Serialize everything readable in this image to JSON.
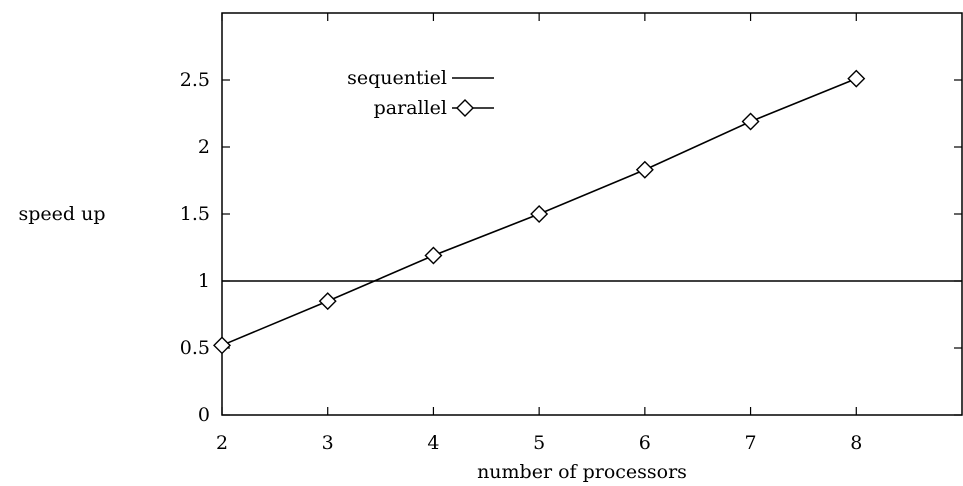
{
  "chart_data": {
    "type": "line",
    "title": "",
    "xlabel": "number of processors",
    "ylabel": "speed up",
    "xlim": [
      2,
      9
    ],
    "ylim": [
      0,
      3
    ],
    "x_ticks": [
      2,
      3,
      4,
      5,
      6,
      7,
      8
    ],
    "x_tick_labels": [
      "2",
      "3",
      "4",
      "5",
      "6",
      "7",
      "8"
    ],
    "y_ticks": [
      0,
      0.5,
      1,
      1.5,
      2,
      2.5
    ],
    "y_tick_labels": [
      "0",
      "0.5",
      "1",
      "1.5",
      "2",
      "2.5"
    ],
    "grid": false,
    "legend_position": "top-left",
    "series": [
      {
        "name": "sequentiel",
        "x": [
          2,
          9
        ],
        "values": [
          1,
          1
        ],
        "marker": "none",
        "color": "#000000"
      },
      {
        "name": "parallel",
        "x": [
          2,
          3,
          4,
          5,
          6,
          7,
          8
        ],
        "values": [
          0.52,
          0.85,
          1.19,
          1.5,
          1.83,
          2.19,
          2.51
        ],
        "marker": "diamond",
        "color": "#000000"
      }
    ]
  }
}
